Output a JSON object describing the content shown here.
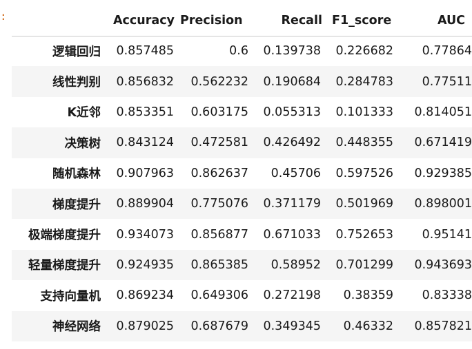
{
  "prompt_mark": ":",
  "table": {
    "columns": [
      "Accuracy",
      "Precision",
      "Recall",
      "F1_score",
      "AUC"
    ],
    "rows": [
      {
        "model": "逻辑回归",
        "values": [
          "0.857485",
          "0.6",
          "0.139738",
          "0.226682",
          "0.77864"
        ]
      },
      {
        "model": "线性判别",
        "values": [
          "0.856832",
          "0.562232",
          "0.190684",
          "0.284783",
          "0.77511"
        ]
      },
      {
        "model": "K近邻",
        "values": [
          "0.853351",
          "0.603175",
          "0.055313",
          "0.101333",
          "0.814051"
        ]
      },
      {
        "model": "决策树",
        "values": [
          "0.843124",
          "0.472581",
          "0.426492",
          "0.448355",
          "0.671419"
        ]
      },
      {
        "model": "随机森林",
        "values": [
          "0.907963",
          "0.862637",
          "0.45706",
          "0.597526",
          "0.929385"
        ]
      },
      {
        "model": "梯度提升",
        "values": [
          "0.889904",
          "0.775076",
          "0.371179",
          "0.501969",
          "0.898001"
        ]
      },
      {
        "model": "极端梯度提升",
        "values": [
          "0.934073",
          "0.856877",
          "0.671033",
          "0.752653",
          "0.95141"
        ]
      },
      {
        "model": "轻量梯度提升",
        "values": [
          "0.924935",
          "0.865385",
          "0.58952",
          "0.701299",
          "0.943693"
        ]
      },
      {
        "model": "支持向量机",
        "values": [
          "0.869234",
          "0.649306",
          "0.272198",
          "0.38359",
          "0.83338"
        ]
      },
      {
        "model": "神经网络",
        "values": [
          "0.879025",
          "0.687679",
          "0.349345",
          "0.46332",
          "0.857821"
        ]
      }
    ]
  }
}
